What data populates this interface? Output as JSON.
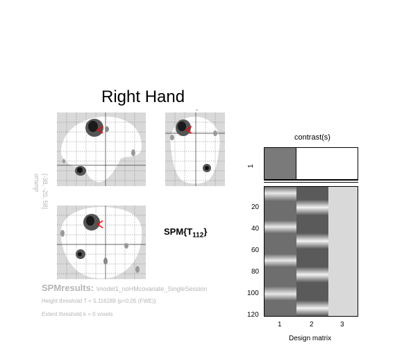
{
  "figure": {
    "title": "Right Hand",
    "side_label_line1": "ɑrɯnp",
    "side_label_line2": "[-38, -20, 58]",
    "statistic_base": "SPM{T",
    "statistic_sub": "112",
    "statistic_close": "}"
  },
  "results": {
    "title": "SPMresults:",
    "model": "\\model1_noHMcovariate_SingleSession",
    "height_threshold": "Height threshold T = 5.116289  {p<0.05 (FWE)}",
    "extent_threshold": "Extent threshold k = 0 voxels"
  },
  "contrast": {
    "label": "contrast(s)",
    "axis_tick": "1",
    "bar_color": "#7a7a7a"
  },
  "design_matrix": {
    "xlabel": "Design matrix",
    "y_ticks": [
      "20",
      "40",
      "60",
      "80",
      "100",
      "120"
    ],
    "x_ticks": [
      "1",
      "2",
      "3"
    ],
    "column3_color": "#d9d9d9"
  },
  "colors": {
    "glass_bg": "#d9d9d9",
    "blob": "#222222",
    "marker": "#ff0000"
  }
}
